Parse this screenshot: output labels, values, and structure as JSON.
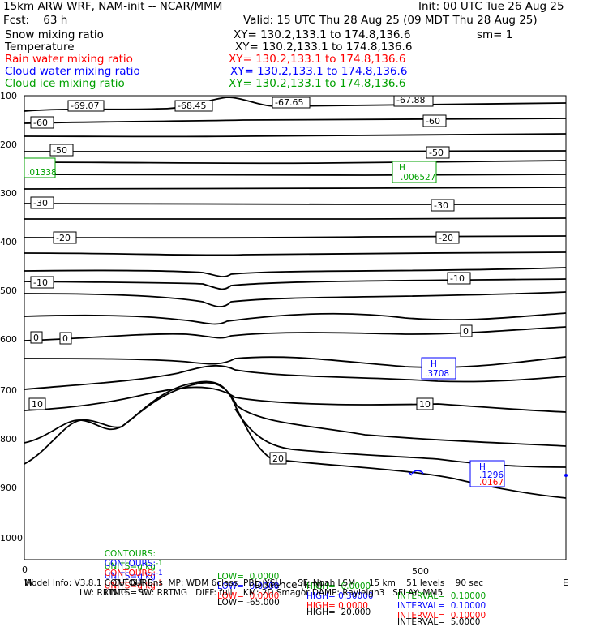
{
  "header": {
    "model_title": "15km ARW WRF, NAM-init -- NCAR/MMM",
    "init": "Init: 00 UTC Tue 26 Aug 25",
    "fcst": "Fcst:    63 h",
    "valid": "Valid: 15 UTC Thu 28 Aug 25 (09 MDT Thu 28 Aug 25)",
    "fields": [
      {
        "name": "Snow mixing ratio",
        "xy": "XY= 130.2,133.1 to 174.8,136.6",
        "extra": "sm= 1",
        "color": "#000000"
      },
      {
        "name": "Temperature",
        "xy": "XY= 130.2,133.1 to 174.8,136.6",
        "extra": "",
        "color": "#000000"
      },
      {
        "name": "Rain water mixing ratio",
        "xy": "XY= 130.2,133.1 to 174.8,136.6",
        "extra": "",
        "color": "#ff0000"
      },
      {
        "name": "Cloud water mixing ratio",
        "xy": "XY= 130.2,133.1 to 174.8,136.6",
        "extra": "",
        "color": "#0000ff"
      },
      {
        "name": "Cloud ice mixing ratio",
        "xy": "XY= 130.2,133.1 to 174.8,136.6",
        "extra": "",
        "color": "#00a000"
      }
    ]
  },
  "chart_data": {
    "type": "line",
    "subtype": "vertical cross-section contour plot",
    "xlabel": "Distance (km)",
    "x_tick_labels": [
      "0",
      "500"
    ],
    "x_endpoint_labels": [
      "W",
      "E"
    ],
    "y_tick_labels": [
      "100",
      "200",
      "300",
      "400",
      "500",
      "600",
      "700",
      "800",
      "900",
      "1000"
    ],
    "contour_labels": [
      "-69.07",
      "-68.45",
      "-67.65",
      "-67.88",
      "-60",
      "-60",
      "-50",
      "-50",
      "-30",
      "-30",
      "-20",
      "-20",
      "-10",
      "-10",
      "0",
      "0",
      "0",
      "10",
      "10",
      "20"
    ],
    "min_max_markers": [
      {
        "label": "H",
        "value": ".01338",
        "color": "#00a000"
      },
      {
        "label": "H",
        "value": ".006527",
        "color": "#00a000"
      },
      {
        "label": "H",
        "value": ".3708",
        "color": "#0000ff"
      },
      {
        "label": "H",
        "value": ".1296",
        "color": "#0000ff"
      },
      {
        "label": "H",
        "value": ".0167",
        "color": "#ff0000"
      }
    ],
    "contour_info": [
      {
        "color": "#00a000",
        "prefix": "CONTOURS:",
        "units": "UNITS=g kg",
        "units_exp": "-1",
        "low": "LOW=  0.0000",
        "high": "HIGH=  0.0000",
        "interval": "INTERVAL=  0.10000"
      },
      {
        "color": "#0000ff",
        "prefix": "CONTOURS:",
        "units": "UNITS=g kg",
        "units_exp": "-1",
        "low": "LOW=  0.0000",
        "high": "HIGH= 0.30000",
        "interval": "INTERVAL=  0.10000"
      },
      {
        "color": "#ff0000",
        "prefix": "CONTOURS:",
        "units": "UNITS=g kg",
        "units_exp": "-1",
        "low": "LOW=  0.0000",
        "high": "HIGH= 0.0000",
        "interval": "INTERVAL=  0.10000"
      },
      {
        "color": "#000000",
        "prefix": "CONTOURS:",
        "units": "UNITS=°C",
        "units_exp": "",
        "low": "LOW= -65.000",
        "high": "HIGH=  20.000",
        "interval": "INTERVAL=  5.0000"
      }
    ]
  },
  "footer": {
    "line1": "Model Info: V3.8.1    CU: G-F Ens  MP: WDM 6class  PBL: YSU      SF: Noah LSM     15 km    51 levels    90 sec",
    "line2": "LW: RRTMG    SW: RRTMG   DIFF: full    KM: 2D Smagor DAMP: Rayleigh3   SFLAY: MM5"
  }
}
